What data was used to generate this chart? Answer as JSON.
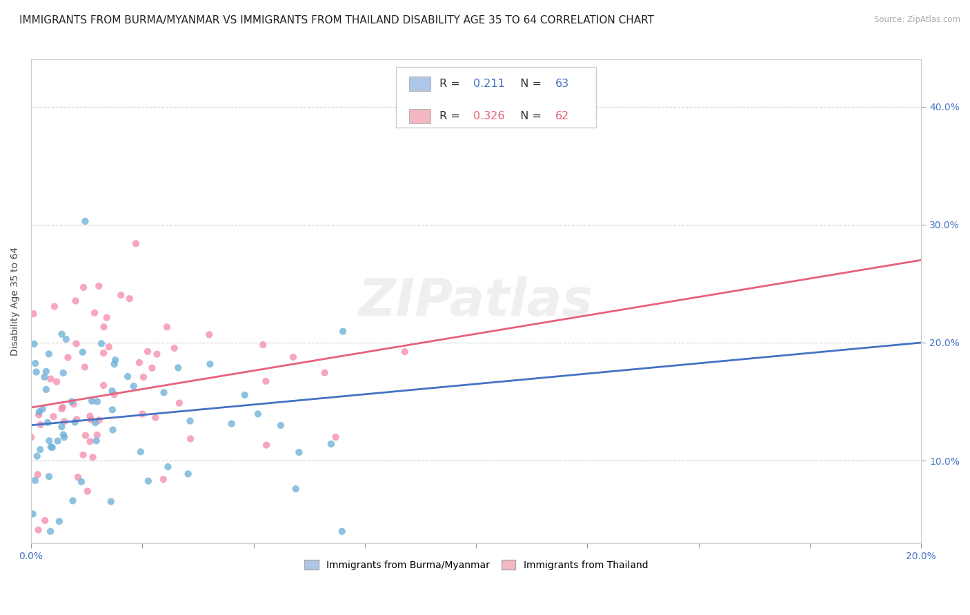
{
  "title": "IMMIGRANTS FROM BURMA/MYANMAR VS IMMIGRANTS FROM THAILAND DISABILITY AGE 35 TO 64 CORRELATION CHART",
  "source": "Source: ZipAtlas.com",
  "ylabel": "Disability Age 35 to 64",
  "xlim": [
    0.0,
    0.2
  ],
  "ylim": [
    0.03,
    0.44
  ],
  "xticks": [
    0.0,
    0.025,
    0.05,
    0.075,
    0.1,
    0.125,
    0.15,
    0.175,
    0.2
  ],
  "ytick_positions": [
    0.1,
    0.2,
    0.3,
    0.4
  ],
  "ytick_labels": [
    "10.0%",
    "20.0%",
    "30.0%",
    "40.0%"
  ],
  "watermark": "ZIPatlas",
  "legend_entries": [
    {
      "color": "#aec6e8",
      "R": "0.211",
      "N": "63"
    },
    {
      "color": "#f4b8c1",
      "R": "0.326",
      "N": "62"
    }
  ],
  "series1_color": "#6aaed6",
  "series2_color": "#f48aaa",
  "line1_color": "#4472c4",
  "line2_color": "#e8607a",
  "series1_label": "Immigrants from Burma/Myanmar",
  "series2_label": "Immigrants from Thailand",
  "series1_R": 0.211,
  "series2_R": 0.326,
  "series1_N": 63,
  "series2_N": 62,
  "line1_y0": 0.13,
  "line1_y1": 0.2,
  "line2_y0": 0.145,
  "line2_y1": 0.27,
  "background_color": "#ffffff",
  "grid_color": "#cccccc",
  "title_fontsize": 11,
  "axis_label_fontsize": 10,
  "tick_fontsize": 10
}
